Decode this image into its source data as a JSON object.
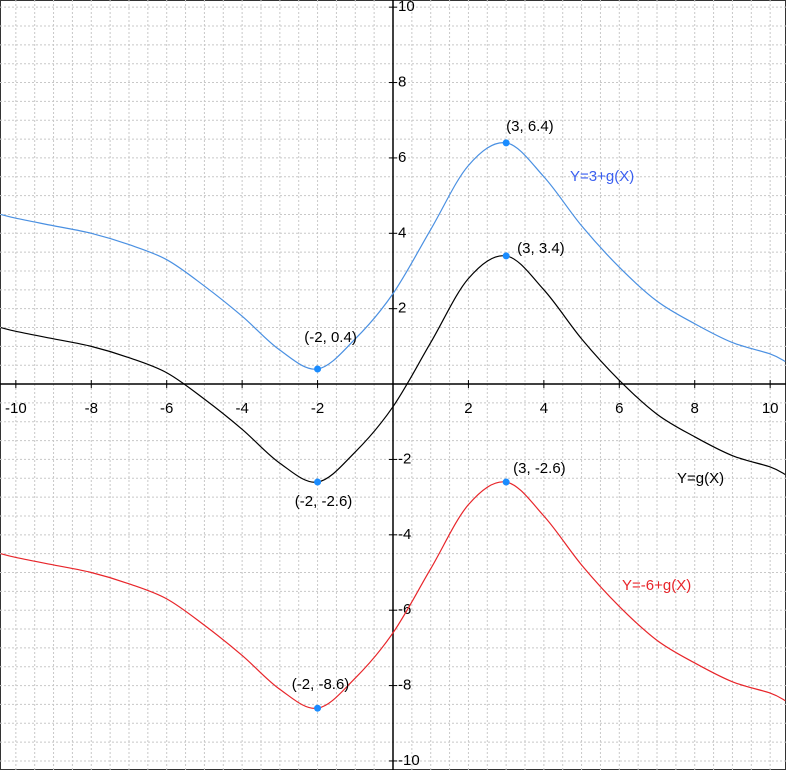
{
  "chart_data": {
    "type": "line",
    "x": [
      -10.4,
      -10,
      -9,
      -8,
      -7,
      -6,
      -5,
      -4,
      -3,
      -2,
      -1,
      0,
      1,
      2,
      3,
      4,
      5,
      6,
      7,
      8,
      9,
      10,
      10.4
    ],
    "series": [
      {
        "name": "Y=3+g(X)",
        "color": "#4a90e2",
        "label_color": "#3a5ff0",
        "values": [
          4.5,
          4.4,
          4.2,
          4.0,
          3.7,
          3.3,
          2.6,
          1.8,
          0.9,
          0.4,
          1.2,
          2.4,
          4.1,
          5.8,
          6.4,
          5.5,
          4.2,
          3.1,
          2.2,
          1.6,
          1.1,
          0.8,
          0.6
        ]
      },
      {
        "name": "Y=g(X)",
        "color": "#000000",
        "label_color": "#000000",
        "values": [
          1.5,
          1.4,
          1.2,
          1.0,
          0.7,
          0.3,
          -0.4,
          -1.2,
          -2.1,
          -2.6,
          -1.8,
          -0.6,
          1.1,
          2.8,
          3.4,
          2.5,
          1.2,
          0.1,
          -0.8,
          -1.4,
          -1.9,
          -2.2,
          -2.4
        ]
      },
      {
        "name": "Y=-6+g(X)",
        "color": "#e8252a",
        "label_color": "#e8252a",
        "values": [
          -4.5,
          -4.6,
          -4.8,
          -5.0,
          -5.3,
          -5.7,
          -6.4,
          -7.2,
          -8.1,
          -8.6,
          -7.8,
          -6.6,
          -4.9,
          -3.2,
          -2.6,
          -3.5,
          -4.8,
          -5.9,
          -6.8,
          -7.4,
          -7.9,
          -8.2,
          -8.4
        ]
      }
    ],
    "points": [
      {
        "x": 3,
        "y": 6.4,
        "label": "(3, 6.4)"
      },
      {
        "x": -2,
        "y": 0.4,
        "label": "(-2, 0.4)"
      },
      {
        "x": 3,
        "y": 3.4,
        "label": "(3, 3.4)"
      },
      {
        "x": -2,
        "y": -2.6,
        "label": "(-2, -2.6)"
      },
      {
        "x": 3,
        "y": -2.6,
        "label": "(3, -2.6)"
      },
      {
        "x": -2,
        "y": -8.6,
        "label": "(-2, -8.6)"
      }
    ],
    "point_color": "#1a8cff",
    "xlim": [
      -10.42,
      10.42
    ],
    "ylim": [
      -10.24,
      10.19
    ],
    "xticks": [
      -10,
      -8,
      -6,
      -4,
      -2,
      2,
      4,
      6,
      8,
      10
    ],
    "yticks": [
      -10,
      -8,
      -6,
      -4,
      -2,
      2,
      4,
      6,
      8,
      10
    ],
    "grid": true,
    "grid_step": 0.5
  }
}
